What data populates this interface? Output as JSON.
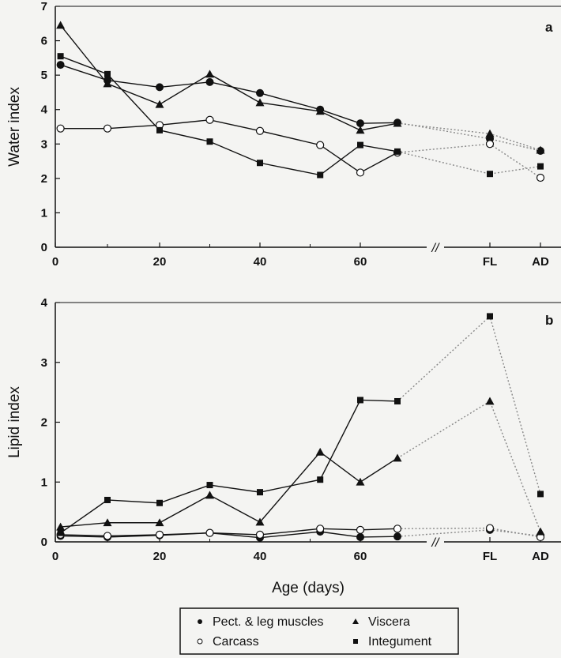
{
  "chart_data": [
    {
      "type": "line",
      "panel": "a",
      "ylabel": "Water index",
      "ylim": [
        0,
        7
      ],
      "yticks": [
        "0",
        "1",
        "2",
        "3",
        "4",
        "5",
        "6",
        "7"
      ],
      "xticks": [
        {
          "label": "0",
          "pos": 0
        },
        {
          "label": "20",
          "pos": 20
        },
        {
          "label": "40",
          "pos": 40
        },
        {
          "label": "60",
          "pos": 60
        },
        {
          "label": "FL",
          "pos": 88
        },
        {
          "label": "AD",
          "pos": 100
        }
      ],
      "series": [
        {
          "name": "Pect. & leg muscles",
          "marker": "filled-circle",
          "x": [
            1,
            10,
            20,
            30,
            40,
            52,
            60,
            68
          ],
          "y": [
            5.3,
            4.85,
            4.65,
            4.8,
            4.48,
            4.0,
            3.6,
            3.62
          ],
          "extra_x": [
            88,
            100
          ],
          "extra_y": [
            3.15,
            2.8
          ]
        },
        {
          "name": "Carcass",
          "marker": "open-circle",
          "x": [
            1,
            10,
            20,
            30,
            40,
            52,
            60,
            68
          ],
          "y": [
            3.45,
            3.45,
            3.55,
            3.7,
            3.38,
            2.97,
            2.17,
            2.75
          ],
          "extra_x": [
            88,
            100
          ],
          "extra_y": [
            3.0,
            2.02
          ]
        },
        {
          "name": "Viscera",
          "marker": "filled-triangle",
          "x": [
            1,
            10,
            20,
            30,
            40,
            52,
            60,
            68
          ],
          "y": [
            6.45,
            4.75,
            4.15,
            5.03,
            4.2,
            3.95,
            3.4,
            3.6
          ],
          "extra_x": [
            88,
            100
          ],
          "extra_y": [
            3.3,
            2.82
          ]
        },
        {
          "name": "Integument",
          "marker": "filled-square",
          "x": [
            1,
            10,
            20,
            30,
            40,
            52,
            60,
            68
          ],
          "y": [
            5.55,
            5.03,
            3.4,
            3.07,
            2.45,
            2.1,
            2.97,
            2.78
          ],
          "extra_x": [
            88,
            100
          ],
          "extra_y": [
            2.13,
            2.35
          ]
        }
      ]
    },
    {
      "type": "line",
      "panel": "b",
      "xlabel": "Age (days)",
      "ylabel": "Lipid index",
      "ylim": [
        0,
        4
      ],
      "yticks": [
        "0",
        "1",
        "2",
        "3",
        "4"
      ],
      "xticks": [
        {
          "label": "0",
          "pos": 0
        },
        {
          "label": "20",
          "pos": 20
        },
        {
          "label": "40",
          "pos": 40
        },
        {
          "label": "60",
          "pos": 60
        },
        {
          "label": "FL",
          "pos": 88
        },
        {
          "label": "AD",
          "pos": 100
        }
      ],
      "series": [
        {
          "name": "Pect. & leg muscles",
          "marker": "filled-circle",
          "x": [
            1,
            10,
            20,
            30,
            40,
            52,
            60,
            68
          ],
          "y": [
            0.1,
            0.08,
            0.11,
            0.15,
            0.07,
            0.17,
            0.08,
            0.09
          ],
          "extra_x": [
            88,
            100
          ],
          "extra_y": [
            0.2,
            0.1
          ]
        },
        {
          "name": "Carcass",
          "marker": "open-circle",
          "x": [
            1,
            10,
            20,
            30,
            40,
            52,
            60,
            68
          ],
          "y": [
            0.12,
            0.1,
            0.12,
            0.15,
            0.12,
            0.22,
            0.2,
            0.22
          ],
          "extra_x": [
            88,
            100
          ],
          "extra_y": [
            0.23,
            0.08
          ]
        },
        {
          "name": "Viscera",
          "marker": "filled-triangle",
          "x": [
            1,
            10,
            20,
            30,
            40,
            52,
            60,
            68
          ],
          "y": [
            0.25,
            0.32,
            0.32,
            0.78,
            0.33,
            1.5,
            1.0,
            1.4
          ],
          "extra_x": [
            88,
            100
          ],
          "extra_y": [
            2.35,
            0.17
          ]
        },
        {
          "name": "Integument",
          "marker": "filled-square",
          "x": [
            1,
            10,
            20,
            30,
            40,
            52,
            60,
            68
          ],
          "y": [
            0.15,
            0.7,
            0.65,
            0.95,
            0.83,
            1.04,
            2.37,
            2.35
          ],
          "extra_x": [
            88,
            100
          ],
          "extra_y": [
            3.77,
            0.8
          ]
        }
      ]
    }
  ],
  "legend": [
    {
      "label": "Pect. & leg muscles",
      "marker": "filled-circle"
    },
    {
      "label": "Viscera",
      "marker": "filled-triangle"
    },
    {
      "label": "Carcass",
      "marker": "open-circle"
    },
    {
      "label": "Integument",
      "marker": "filled-square"
    }
  ],
  "axis_break": "//"
}
